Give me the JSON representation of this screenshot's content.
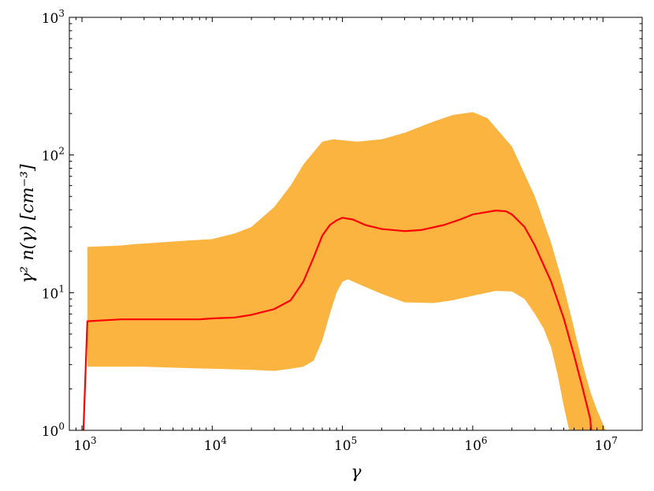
{
  "chart_data": {
    "type": "area",
    "xlabel": "γ",
    "ylabel": "γ² n(γ) [cm⁻³]",
    "xscale": "log",
    "yscale": "log",
    "xlim": [
      800,
      20000000
    ],
    "ylim": [
      1,
      1000
    ],
    "grid": false,
    "legend": "none",
    "x_ticks": [
      {
        "value": 1000,
        "base": "10",
        "exp": "3"
      },
      {
        "value": 10000,
        "base": "10",
        "exp": "4"
      },
      {
        "value": 100000,
        "base": "10",
        "exp": "5"
      },
      {
        "value": 1000000,
        "base": "10",
        "exp": "6"
      },
      {
        "value": 10000000,
        "base": "10",
        "exp": "7"
      }
    ],
    "y_ticks": [
      {
        "value": 1,
        "base": "10",
        "exp": "0"
      },
      {
        "value": 10,
        "base": "10",
        "exp": "1"
      },
      {
        "value": 100,
        "base": "10",
        "exp": "2"
      },
      {
        "value": 1000,
        "base": "10",
        "exp": "3"
      }
    ],
    "colors": {
      "band": "#fbb43f",
      "line": "#ff0000"
    },
    "band_upper": [
      [
        1100,
        21.5
      ],
      [
        2000,
        22
      ],
      [
        2500,
        22.5
      ],
      [
        5000,
        23.5
      ],
      [
        7000,
        24
      ],
      [
        10000,
        24.5
      ],
      [
        15000,
        27
      ],
      [
        20000,
        30
      ],
      [
        30000,
        42
      ],
      [
        40000,
        60
      ],
      [
        50000,
        85
      ],
      [
        60000,
        105
      ],
      [
        70000,
        125
      ],
      [
        85000,
        130
      ],
      [
        100000,
        128
      ],
      [
        130000,
        125
      ],
      [
        200000,
        130
      ],
      [
        300000,
        145
      ],
      [
        500000,
        175
      ],
      [
        700000,
        195
      ],
      [
        1000000,
        205
      ],
      [
        1300000,
        185
      ],
      [
        2000000,
        115
      ],
      [
        3000000,
        50
      ],
      [
        4000000,
        23
      ],
      [
        5000000,
        11
      ],
      [
        6000000,
        5.5
      ],
      [
        7000000,
        3
      ],
      [
        8000000,
        1.9
      ],
      [
        9000000,
        1.4
      ],
      [
        10500000,
        1
      ]
    ],
    "band_lower": [
      [
        1100,
        2.9
      ],
      [
        3000,
        2.9
      ],
      [
        5000,
        2.85
      ],
      [
        10000,
        2.8
      ],
      [
        20000,
        2.75
      ],
      [
        30000,
        2.7
      ],
      [
        40000,
        2.8
      ],
      [
        50000,
        2.9
      ],
      [
        60000,
        3.2
      ],
      [
        70000,
        4.5
      ],
      [
        80000,
        7
      ],
      [
        90000,
        10
      ],
      [
        100000,
        12
      ],
      [
        110000,
        12.5
      ],
      [
        150000,
        11
      ],
      [
        200000,
        9.8
      ],
      [
        300000,
        8.5
      ],
      [
        500000,
        8.4
      ],
      [
        700000,
        8.8
      ],
      [
        1000000,
        9.5
      ],
      [
        1500000,
        10.3
      ],
      [
        2000000,
        10.2
      ],
      [
        2500000,
        9
      ],
      [
        3000000,
        7
      ],
      [
        3500000,
        5.5
      ],
      [
        4000000,
        4
      ],
      [
        4500000,
        2.5
      ],
      [
        5000000,
        1.5
      ],
      [
        5500000,
        1
      ]
    ],
    "series": [
      {
        "values": [
          [
            1000,
            0.5
          ],
          [
            1100,
            6.2
          ],
          [
            2000,
            6.4
          ],
          [
            5000,
            6.4
          ],
          [
            8000,
            6.4
          ],
          [
            10000,
            6.5
          ],
          [
            15000,
            6.6
          ],
          [
            20000,
            6.9
          ],
          [
            30000,
            7.6
          ],
          [
            40000,
            8.8
          ],
          [
            50000,
            12
          ],
          [
            60000,
            18
          ],
          [
            70000,
            26
          ],
          [
            80000,
            31
          ],
          [
            90000,
            33.5
          ],
          [
            100000,
            35
          ],
          [
            120000,
            34
          ],
          [
            150000,
            31
          ],
          [
            200000,
            29
          ],
          [
            300000,
            28
          ],
          [
            400000,
            28.5
          ],
          [
            600000,
            31
          ],
          [
            800000,
            34
          ],
          [
            1000000,
            37
          ],
          [
            1500000,
            39.5
          ],
          [
            1800000,
            39
          ],
          [
            2000000,
            37
          ],
          [
            2500000,
            30
          ],
          [
            3000000,
            22
          ],
          [
            4000000,
            12
          ],
          [
            5000000,
            6.5
          ],
          [
            6000000,
            3.5
          ],
          [
            7000000,
            2
          ],
          [
            8000000,
            1.2
          ],
          [
            8500000,
            0.5
          ]
        ]
      }
    ]
  }
}
